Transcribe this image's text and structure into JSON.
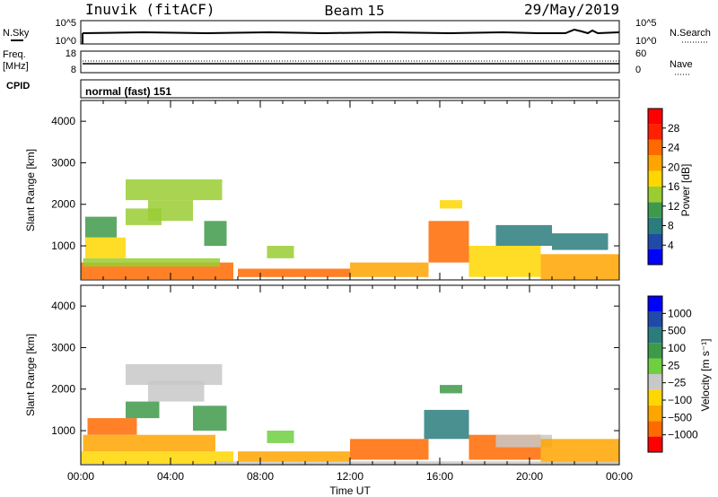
{
  "header": {
    "station": "Inuvik (fitACF)",
    "beam": "Beam 15",
    "date": "29/May/2019"
  },
  "panels": {
    "nsky": {
      "left_label": "N.Sky",
      "right_label": "N.Search",
      "tick_top": "10^5",
      "tick_bottom": "10^0"
    },
    "freq": {
      "left_label_1": "Freq.",
      "left_label_2": "[MHz]",
      "right_label": "Nave",
      "left_top": "18",
      "left_bottom": "8",
      "right_top": "60",
      "right_bottom": "0"
    },
    "cpid": {
      "label": "CPID",
      "value": "normal (fast) 151"
    }
  },
  "colors": {
    "power": [
      "#0000ff",
      "#1f4aa8",
      "#2a7d7d",
      "#3e9a4a",
      "#9acd32",
      "#ffd700",
      "#ffa500",
      "#ff6a00",
      "#ff2000",
      "#ff0000"
    ],
    "velocity": [
      "#ff0000",
      "#ff6a00",
      "#ffa500",
      "#ffd700",
      "#c8c8c8",
      "#6fcf3f",
      "#3e9a4a",
      "#2a7d7d",
      "#1f4aa8",
      "#0000ff"
    ]
  },
  "chart_data": [
    {
      "type": "heatmap",
      "name": "power",
      "xlabel": "",
      "ylabel": "Slant Range [km]",
      "y_ticks": [
        1000,
        2000,
        3000,
        4000
      ],
      "ylim": [
        180,
        4500
      ],
      "xlim_hours": [
        0,
        24
      ],
      "colorbar": {
        "label": "Power [dB]",
        "ticks": [
          "4",
          "8",
          "12",
          "16",
          "20",
          "24",
          "28"
        ],
        "range": [
          0,
          30
        ]
      },
      "regions": [
        {
          "t": [
            0.0,
            6.8
          ],
          "r": [
            200,
            600
          ],
          "v": 24
        },
        {
          "t": [
            0.1,
            6.2
          ],
          "r": [
            500,
            700
          ],
          "v": 14
        },
        {
          "t": [
            0.2,
            2.0
          ],
          "r": [
            700,
            1200
          ],
          "v": 18
        },
        {
          "t": [
            0.2,
            1.6
          ],
          "r": [
            1200,
            1700
          ],
          "v": 10
        },
        {
          "t": [
            2.0,
            6.3
          ],
          "r": [
            2100,
            2600
          ],
          "v": 12
        },
        {
          "t": [
            3.0,
            5.0
          ],
          "r": [
            1600,
            2100
          ],
          "v": 14
        },
        {
          "t": [
            5.5,
            6.5
          ],
          "r": [
            1000,
            1600
          ],
          "v": 10
        },
        {
          "t": [
            2.0,
            3.6
          ],
          "r": [
            1500,
            1900
          ],
          "v": 12
        },
        {
          "t": [
            7.0,
            12.0
          ],
          "r": [
            250,
            450
          ],
          "v": 22
        },
        {
          "t": [
            8.3,
            9.5
          ],
          "r": [
            700,
            1000
          ],
          "v": 14
        },
        {
          "t": [
            12.0,
            15.5
          ],
          "r": [
            250,
            600
          ],
          "v": 20
        },
        {
          "t": [
            15.5,
            17.3
          ],
          "r": [
            600,
            1600
          ],
          "v": 22
        },
        {
          "t": [
            16.0,
            17.0
          ],
          "r": [
            1900,
            2100
          ],
          "v": 16
        },
        {
          "t": [
            17.3,
            20.5
          ],
          "r": [
            250,
            1000
          ],
          "v": 18
        },
        {
          "t": [
            18.5,
            21.0
          ],
          "r": [
            1000,
            1500
          ],
          "v": 8
        },
        {
          "t": [
            20.5,
            24.0
          ],
          "r": [
            200,
            800
          ],
          "v": 20
        },
        {
          "t": [
            21.0,
            23.5
          ],
          "r": [
            900,
            1300
          ],
          "v": 6
        }
      ]
    },
    {
      "type": "heatmap",
      "name": "velocity",
      "xlabel": "Time UT",
      "ylabel": "Slant Range [km]",
      "x_ticks": [
        "00:00",
        "04:00",
        "08:00",
        "12:00",
        "16:00",
        "20:00",
        "00:00"
      ],
      "y_ticks": [
        1000,
        2000,
        3000,
        4000
      ],
      "ylim": [
        180,
        4500
      ],
      "xlim_hours": [
        0,
        24
      ],
      "colorbar": {
        "label": "Velocity [m s⁻¹]",
        "ticks": [
          "1000",
          "500",
          "100",
          "25",
          "−25",
          "−100",
          "−500",
          "−1000"
        ]
      },
      "regions": [
        {
          "t": [
            0.0,
            6.8
          ],
          "r": [
            200,
            500
          ],
          "v": 3
        },
        {
          "t": [
            0.1,
            6.0
          ],
          "r": [
            500,
            900
          ],
          "v": 2
        },
        {
          "t": [
            0.3,
            2.5
          ],
          "r": [
            900,
            1300
          ],
          "v": 1
        },
        {
          "t": [
            2.0,
            6.3
          ],
          "r": [
            2100,
            2600
          ],
          "v": 4
        },
        {
          "t": [
            3.0,
            5.5
          ],
          "r": [
            1700,
            2200
          ],
          "v": 4
        },
        {
          "t": [
            5.0,
            6.5
          ],
          "r": [
            1000,
            1600
          ],
          "v": 6
        },
        {
          "t": [
            2.0,
            3.5
          ],
          "r": [
            1300,
            1700
          ],
          "v": 6
        },
        {
          "t": [
            7.0,
            12.0
          ],
          "r": [
            250,
            500
          ],
          "v": 2
        },
        {
          "t": [
            8.3,
            9.5
          ],
          "r": [
            700,
            1000
          ],
          "v": 5
        },
        {
          "t": [
            12.0,
            15.5
          ],
          "r": [
            300,
            800
          ],
          "v": 1
        },
        {
          "t": [
            15.3,
            17.3
          ],
          "r": [
            800,
            1500
          ],
          "v": 7
        },
        {
          "t": [
            16.0,
            17.0
          ],
          "r": [
            1900,
            2100
          ],
          "v": 6
        },
        {
          "t": [
            17.3,
            20.5
          ],
          "r": [
            300,
            900
          ],
          "v": 1
        },
        {
          "t": [
            18.5,
            21.0
          ],
          "r": [
            600,
            900
          ],
          "v": 4
        },
        {
          "t": [
            20.5,
            24.0
          ],
          "r": [
            200,
            800
          ],
          "v": 2
        },
        {
          "t": [
            6.0,
            24.0
          ],
          "r": [
            180,
            260
          ],
          "v": 4
        }
      ]
    }
  ]
}
